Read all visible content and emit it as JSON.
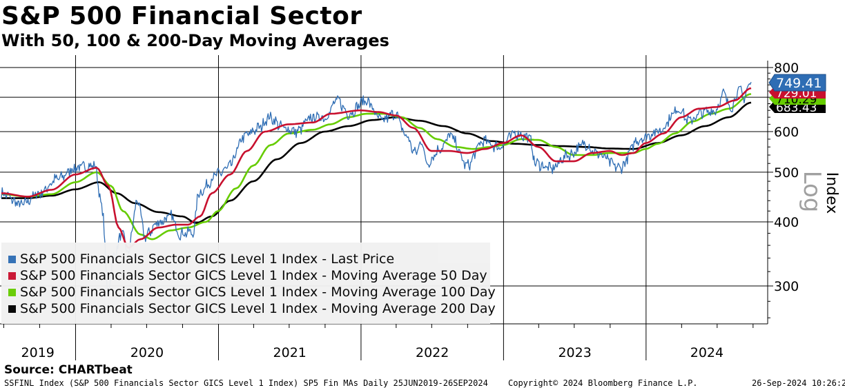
{
  "title": "S&P 500 Financial Sector",
  "subtitle": "With 50, 100 & 200-Day Moving Averages",
  "source": "Source: CHARTbeat",
  "footer": {
    "left": "SSFINL Index (S&P 500 Financials Sector GICS Level 1 Index) SP5 Fin MAs  Daily 25JUN2019-26SEP2024",
    "center": "Copyright© 2024 Bloomberg Finance L.P.",
    "right": "26-Sep-2024 10:26:25"
  },
  "axis_labels": {
    "right_unit": "Index",
    "scale_tag": "Log"
  },
  "chart_data": {
    "type": "line",
    "title": "S&P 500 Financial Sector",
    "subtitle": "With 50, 100 & 200-Day Moving Averages",
    "xlabel": "",
    "ylabel": "Index",
    "y_scale": "log",
    "ylim": [
      245,
      820
    ],
    "y_ticks": [
      300,
      400,
      500,
      600,
      800
    ],
    "x_ticks": [
      "2019",
      "2020",
      "2021",
      "2022",
      "2023",
      "2024"
    ],
    "x_range": [
      "2019-06-25",
      "2024-09-26"
    ],
    "grid": true,
    "legend_position": "bottom-left",
    "last_values": [
      {
        "series": "S&P 500 Financials Sector GICS Level 1 Index - Last Price",
        "label": "749.41",
        "value": 749.41,
        "color": "#2e6db4"
      },
      {
        "series": "S&P 500 Financials Sector GICS Level 1 Index - Moving Average 50 Day",
        "label": "729.01",
        "value": 729.01,
        "color": "#c8102e"
      },
      {
        "series": "S&P 500 Financials Sector GICS Level 1 Index - Moving Average 100 Day",
        "label": "710.29",
        "value": 710.29,
        "color": "#66cc00"
      },
      {
        "series": "S&P 500 Financials Sector GICS Level 1 Index - Moving Average 200 Day",
        "label": "683.43",
        "value": 683.43,
        "color": "#000000"
      }
    ],
    "series": [
      {
        "name": "S&P 500 Financials Sector GICS Level 1 Index - Last Price",
        "color": "#2e6db4",
        "points": [
          [
            "2019-06-25",
            455
          ],
          [
            "2019-08-15",
            432
          ],
          [
            "2019-10-01",
            455
          ],
          [
            "2019-11-15",
            485
          ],
          [
            "2020-01-02",
            510
          ],
          [
            "2020-02-19",
            515
          ],
          [
            "2020-03-10",
            420
          ],
          [
            "2020-03-23",
            292
          ],
          [
            "2020-04-10",
            345
          ],
          [
            "2020-04-29",
            380
          ],
          [
            "2020-05-14",
            348
          ],
          [
            "2020-06-08",
            440
          ],
          [
            "2020-06-26",
            375
          ],
          [
            "2020-08-03",
            400
          ],
          [
            "2020-09-02",
            410
          ],
          [
            "2020-09-23",
            380
          ],
          [
            "2020-10-30",
            382
          ],
          [
            "2020-11-10",
            455
          ],
          [
            "2020-12-31",
            495
          ],
          [
            "2021-01-25",
            510
          ],
          [
            "2021-03-12",
            590
          ],
          [
            "2021-04-15",
            610
          ],
          [
            "2021-05-10",
            640
          ],
          [
            "2021-06-18",
            610
          ],
          [
            "2021-07-19",
            600
          ],
          [
            "2021-08-31",
            640
          ],
          [
            "2021-10-01",
            640
          ],
          [
            "2021-11-02",
            690
          ],
          [
            "2021-11-30",
            650
          ],
          [
            "2022-01-13",
            690
          ],
          [
            "2022-02-23",
            630
          ],
          [
            "2022-03-29",
            650
          ],
          [
            "2022-04-26",
            590
          ],
          [
            "2022-05-19",
            545
          ],
          [
            "2022-06-08",
            575
          ],
          [
            "2022-06-16",
            520
          ],
          [
            "2022-07-29",
            560
          ],
          [
            "2022-08-16",
            590
          ],
          [
            "2022-09-30",
            515
          ],
          [
            "2022-11-10",
            575
          ],
          [
            "2022-12-20",
            560
          ],
          [
            "2023-02-01",
            595
          ],
          [
            "2023-03-08",
            585
          ],
          [
            "2023-03-24",
            520
          ],
          [
            "2023-05-04",
            508
          ],
          [
            "2023-06-15",
            540
          ],
          [
            "2023-07-31",
            568
          ],
          [
            "2023-08-25",
            545
          ],
          [
            "2023-10-26",
            510
          ],
          [
            "2023-12-14",
            580
          ],
          [
            "2024-01-30",
            600
          ],
          [
            "2024-03-28",
            665
          ],
          [
            "2024-04-17",
            630
          ],
          [
            "2024-05-30",
            655
          ],
          [
            "2024-06-27",
            660
          ],
          [
            "2024-07-17",
            710
          ],
          [
            "2024-08-05",
            670
          ],
          [
            "2024-08-27",
            725
          ],
          [
            "2024-09-06",
            700
          ],
          [
            "2024-09-26",
            749.41
          ]
        ]
      },
      {
        "name": "S&P 500 Financials Sector GICS Level 1 Index - Moving Average 50 Day",
        "color": "#c8102e",
        "points": [
          [
            "2019-06-25",
            455
          ],
          [
            "2019-09-01",
            448
          ],
          [
            "2019-11-01",
            462
          ],
          [
            "2020-01-01",
            495
          ],
          [
            "2020-02-24",
            510
          ],
          [
            "2020-03-25",
            470
          ],
          [
            "2020-04-20",
            390
          ],
          [
            "2020-05-15",
            356
          ],
          [
            "2020-06-15",
            370
          ],
          [
            "2020-07-31",
            390
          ],
          [
            "2020-09-15",
            395
          ],
          [
            "2020-10-15",
            395
          ],
          [
            "2020-11-15",
            410
          ],
          [
            "2020-12-15",
            455
          ],
          [
            "2021-01-31",
            495
          ],
          [
            "2021-03-15",
            550
          ],
          [
            "2021-04-30",
            600
          ],
          [
            "2021-06-30",
            620
          ],
          [
            "2021-08-31",
            625
          ],
          [
            "2021-10-15",
            650
          ],
          [
            "2021-12-31",
            660
          ],
          [
            "2022-02-15",
            655
          ],
          [
            "2022-04-01",
            645
          ],
          [
            "2022-05-15",
            610
          ],
          [
            "2022-06-30",
            550
          ],
          [
            "2022-08-15",
            550
          ],
          [
            "2022-09-30",
            545
          ],
          [
            "2022-11-15",
            555
          ],
          [
            "2022-12-31",
            570
          ],
          [
            "2023-02-15",
            590
          ],
          [
            "2023-03-31",
            560
          ],
          [
            "2023-05-15",
            525
          ],
          [
            "2023-06-30",
            525
          ],
          [
            "2023-08-15",
            545
          ],
          [
            "2023-09-30",
            550
          ],
          [
            "2023-10-31",
            540
          ],
          [
            "2023-11-30",
            545
          ],
          [
            "2023-12-31",
            570
          ],
          [
            "2024-02-15",
            595
          ],
          [
            "2024-03-31",
            640
          ],
          [
            "2024-05-15",
            665
          ],
          [
            "2024-06-30",
            670
          ],
          [
            "2024-08-15",
            690
          ],
          [
            "2024-09-26",
            729.01
          ]
        ]
      },
      {
        "name": "S&P 500 Financials Sector GICS Level 1 Index - Moving Average 100 Day",
        "color": "#66cc00",
        "points": [
          [
            "2019-06-25",
            453
          ],
          [
            "2019-09-01",
            448
          ],
          [
            "2019-11-01",
            453
          ],
          [
            "2020-01-01",
            478
          ],
          [
            "2020-02-24",
            500
          ],
          [
            "2020-04-01",
            470
          ],
          [
            "2020-05-01",
            420
          ],
          [
            "2020-06-15",
            378
          ],
          [
            "2020-07-15",
            370
          ],
          [
            "2020-08-31",
            385
          ],
          [
            "2020-10-15",
            390
          ],
          [
            "2020-11-30",
            400
          ],
          [
            "2020-12-31",
            420
          ],
          [
            "2021-02-15",
            465
          ],
          [
            "2021-03-31",
            515
          ],
          [
            "2021-05-15",
            565
          ],
          [
            "2021-06-30",
            595
          ],
          [
            "2021-08-31",
            605
          ],
          [
            "2021-10-15",
            620
          ],
          [
            "2021-11-30",
            640
          ],
          [
            "2022-01-15",
            650
          ],
          [
            "2022-02-28",
            650
          ],
          [
            "2022-04-15",
            640
          ],
          [
            "2022-05-31",
            610
          ],
          [
            "2022-07-15",
            580
          ],
          [
            "2022-08-31",
            560
          ],
          [
            "2022-10-15",
            555
          ],
          [
            "2022-11-30",
            560
          ],
          [
            "2022-12-31",
            565
          ],
          [
            "2023-02-15",
            580
          ],
          [
            "2023-03-31",
            578
          ],
          [
            "2023-05-15",
            560
          ],
          [
            "2023-06-30",
            540
          ],
          [
            "2023-08-15",
            540
          ],
          [
            "2023-09-30",
            545
          ],
          [
            "2023-10-31",
            545
          ],
          [
            "2023-11-30",
            545
          ],
          [
            "2023-12-31",
            555
          ],
          [
            "2024-01-31",
            568
          ],
          [
            "2024-03-15",
            595
          ],
          [
            "2024-04-30",
            628
          ],
          [
            "2024-06-15",
            650
          ],
          [
            "2024-07-31",
            665
          ],
          [
            "2024-09-26",
            710.29
          ]
        ]
      },
      {
        "name": "S&P 500 Financials Sector GICS Level 1 Index - Moving Average 200 Day",
        "color": "#000000",
        "points": [
          [
            "2019-06-25",
            445
          ],
          [
            "2019-09-01",
            445
          ],
          [
            "2019-11-01",
            450
          ],
          [
            "2020-01-01",
            463
          ],
          [
            "2020-03-01",
            478
          ],
          [
            "2020-04-15",
            455
          ],
          [
            "2020-06-01",
            435
          ],
          [
            "2020-07-31",
            418
          ],
          [
            "2020-09-30",
            410
          ],
          [
            "2020-11-05",
            398
          ],
          [
            "2020-12-15",
            410
          ],
          [
            "2021-01-31",
            440
          ],
          [
            "2021-03-31",
            480
          ],
          [
            "2021-05-31",
            530
          ],
          [
            "2021-07-31",
            570
          ],
          [
            "2021-09-30",
            600
          ],
          [
            "2021-11-30",
            615
          ],
          [
            "2022-01-31",
            632
          ],
          [
            "2022-03-31",
            640
          ],
          [
            "2022-05-31",
            630
          ],
          [
            "2022-07-31",
            615
          ],
          [
            "2022-09-30",
            595
          ],
          [
            "2022-11-30",
            575
          ],
          [
            "2023-01-31",
            568
          ],
          [
            "2023-03-31",
            565
          ],
          [
            "2023-05-31",
            562
          ],
          [
            "2023-07-31",
            560
          ],
          [
            "2023-09-30",
            556
          ],
          [
            "2023-11-30",
            555
          ],
          [
            "2024-01-31",
            570
          ],
          [
            "2024-03-31",
            590
          ],
          [
            "2024-05-31",
            615
          ],
          [
            "2024-07-31",
            640
          ],
          [
            "2024-09-26",
            683.43
          ]
        ]
      }
    ]
  }
}
